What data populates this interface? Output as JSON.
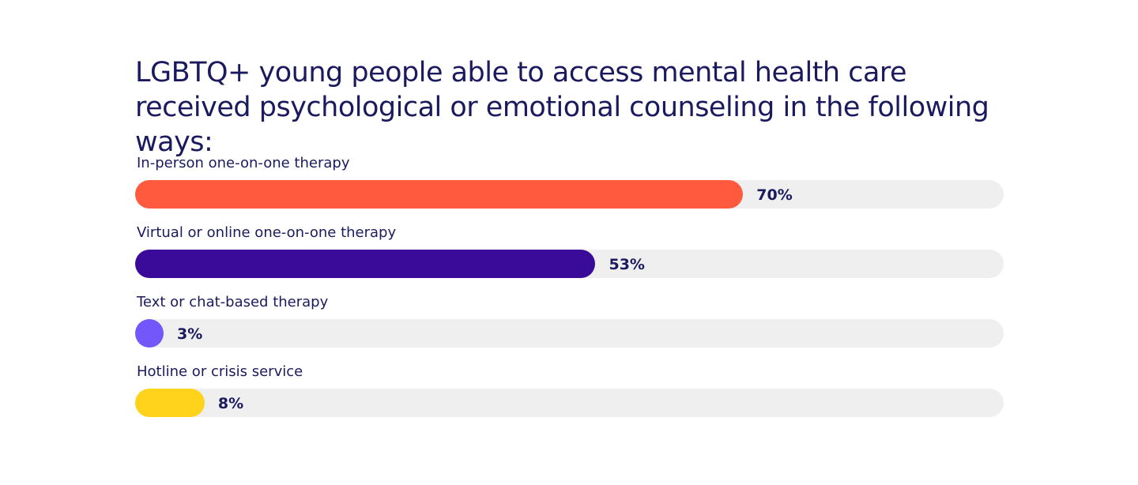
{
  "chart_data": {
    "type": "bar",
    "orientation": "horizontal",
    "title": "LGBTQ+ young people able to access mental health care received psychological or emotional counseling in the following ways:",
    "xlim": [
      0,
      100
    ],
    "grid": false,
    "categories": [
      "In-person one-on-one therapy",
      "Virtual or online one-on-one therapy",
      "Text or chat-based therapy",
      "Hotline or crisis service"
    ],
    "values": [
      70,
      53,
      3,
      8
    ],
    "value_labels": [
      "70%",
      "53%",
      "3%",
      "8%"
    ],
    "colors": [
      "#ff5a3d",
      "#3a0a99",
      "#7357fb",
      "#ffd21c"
    ],
    "track_color": "#efefef"
  }
}
